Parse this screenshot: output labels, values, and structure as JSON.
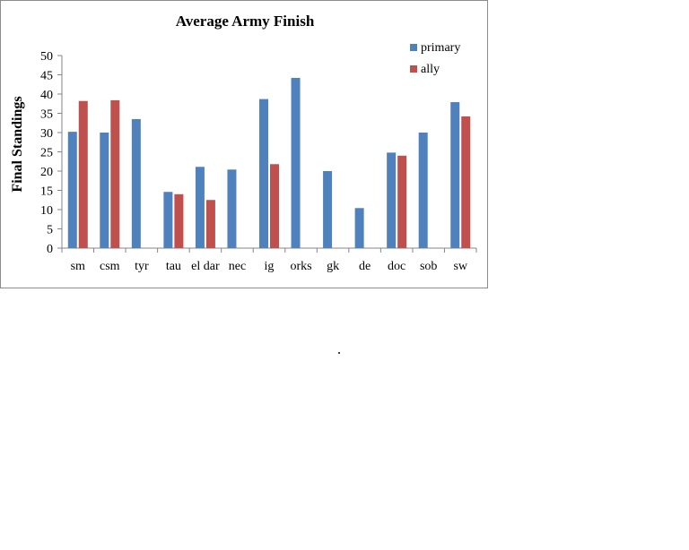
{
  "chart_data": {
    "type": "bar",
    "title": "Average Army Finish",
    "xlabel": "",
    "ylabel": "Final Standings",
    "ylim": [
      0,
      50
    ],
    "yticks": [
      "0",
      "5",
      "10",
      "15",
      "20",
      "25",
      "30",
      "35",
      "40",
      "45",
      "50"
    ],
    "categories": [
      "sm",
      "csm",
      "tyr",
      "tau",
      "eldar",
      "nec",
      "ig",
      "orks",
      "gk",
      "de",
      "doc",
      "sob",
      "sw"
    ],
    "category_labels": [
      "sm",
      "csm",
      "tyr",
      "tau",
      "el dar",
      "nec",
      "ig",
      "orks",
      "gk",
      "de",
      "doc",
      "sob",
      "sw"
    ],
    "series": [
      {
        "name": "primary",
        "color": "#4F81BD",
        "values": [
          30.2,
          30,
          33.5,
          14.6,
          21.1,
          20.4,
          38.7,
          44.2,
          20,
          10.4,
          24.8,
          30,
          37.9
        ]
      },
      {
        "name": "ally",
        "color": "#C0504D",
        "values": [
          38.2,
          38.4,
          null,
          14,
          12.5,
          null,
          21.8,
          null,
          null,
          null,
          24,
          null,
          34.2
        ]
      }
    ],
    "grid": false,
    "legend_position": "top-right"
  }
}
